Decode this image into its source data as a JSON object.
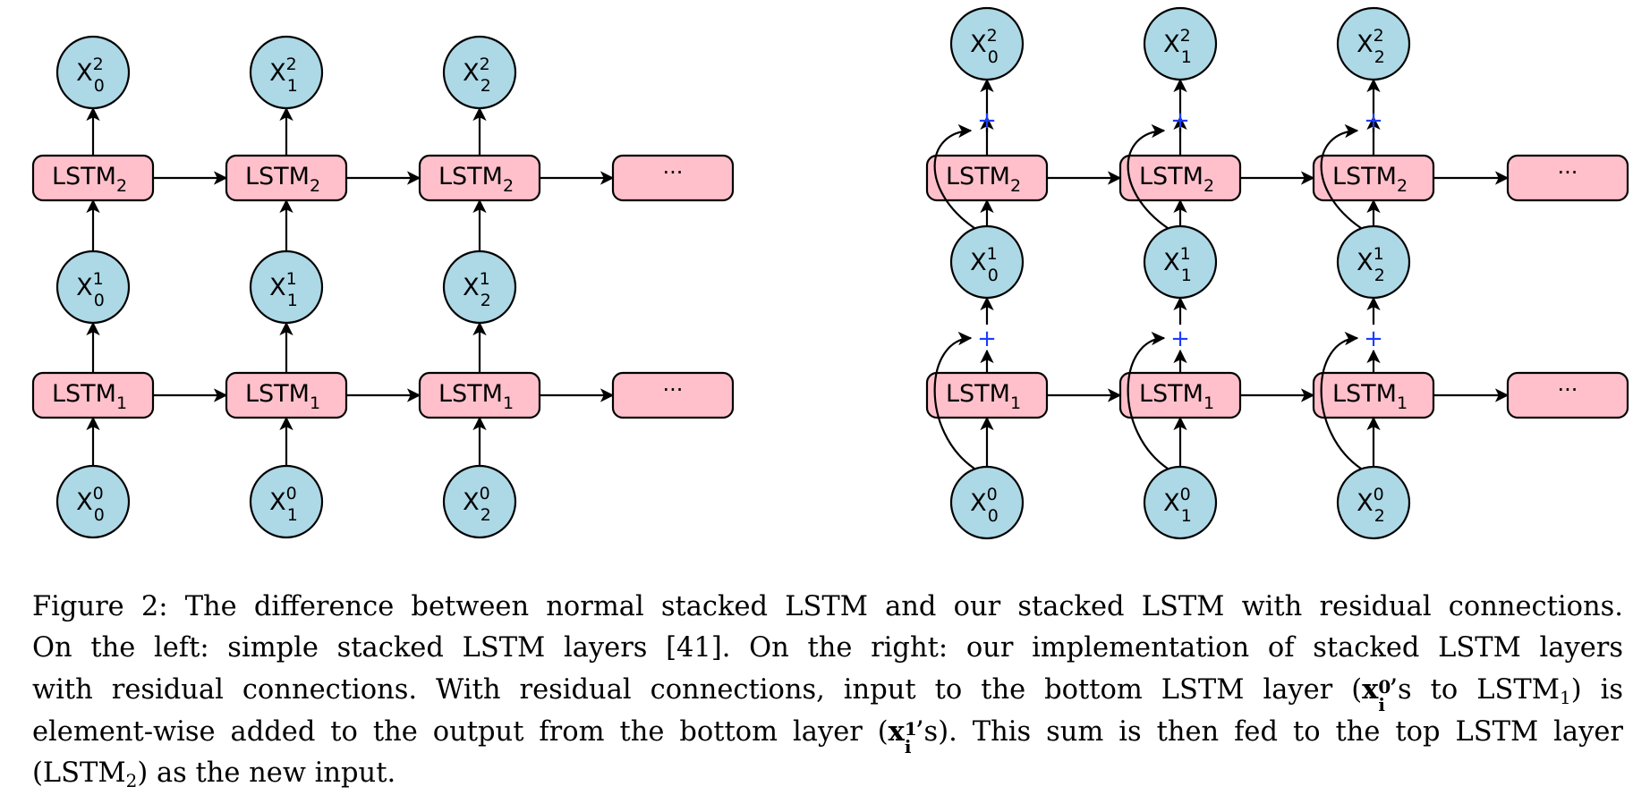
{
  "diagrams": [
    {
      "name": "stacked-lstm",
      "residual": false,
      "columns": [
        {
          "x0": "X",
          "x0_sub": "0",
          "x0_sup": "0",
          "x1": "X",
          "x1_sub": "0",
          "x1_sup": "1",
          "x2": "X",
          "x2_sub": "0",
          "x2_sup": "2"
        },
        {
          "x0": "X",
          "x0_sub": "1",
          "x0_sup": "0",
          "x1": "X",
          "x1_sub": "1",
          "x1_sup": "1",
          "x2": "X",
          "x2_sub": "1",
          "x2_sup": "2"
        },
        {
          "x0": "X",
          "x0_sub": "2",
          "x0_sup": "0",
          "x1": "X",
          "x1_sub": "2",
          "x1_sup": "1",
          "x2": "X",
          "x2_sub": "2",
          "x2_sup": "2"
        }
      ],
      "layer1_label": "LSTM",
      "layer1_sub": "1",
      "layer2_label": "LSTM",
      "layer2_sub": "2",
      "ellipsis": "···"
    },
    {
      "name": "residual-lstm",
      "residual": true,
      "columns": [
        {
          "x0": "X",
          "x0_sub": "0",
          "x0_sup": "0",
          "x1": "X",
          "x1_sub": "0",
          "x1_sup": "1",
          "x2": "X",
          "x2_sub": "0",
          "x2_sup": "2"
        },
        {
          "x0": "X",
          "x0_sub": "1",
          "x0_sup": "0",
          "x1": "X",
          "x1_sub": "1",
          "x1_sup": "1",
          "x2": "X",
          "x2_sub": "1",
          "x2_sup": "2"
        },
        {
          "x0": "X",
          "x0_sub": "2",
          "x0_sup": "0",
          "x1": "X",
          "x1_sub": "2",
          "x1_sup": "1",
          "x2": "X",
          "x2_sub": "2",
          "x2_sup": "2"
        }
      ],
      "layer1_label": "LSTM",
      "layer1_sub": "1",
      "layer2_label": "LSTM",
      "layer2_sub": "2",
      "ellipsis": "···",
      "plus_symbol": "+"
    }
  ],
  "caption": {
    "l1": "Figure 2: The difference between normal stacked LSTM and our stacked LSTM with residual connections.",
    "l2": "On the left: simple stacked LSTM layers [41]. On the right: our implementation of stacked LSTM layers",
    "l3a": "with residual connections. With residual connections, input to the bottom LSTM layer (",
    "l3_x": "x",
    "l3_sup": "0",
    "l3_sub": "i",
    "l3b": "’s to LSTM",
    "l3_lstm_sub": "1",
    "l3c": ") is",
    "l4a": "element-wise added to the output from the bottom layer (",
    "l4_x": "x",
    "l4_sup": "1",
    "l4_sub": "i",
    "l4b": "’s). This sum is then fed to the top LSTM layer",
    "l5a": "(LSTM",
    "l5_sub": "2",
    "l5b": ") as the new input."
  },
  "colors": {
    "node": "#add8e6",
    "lstm": "#ffc0cb",
    "plus": "#1a3cff",
    "stroke": "#000000"
  }
}
